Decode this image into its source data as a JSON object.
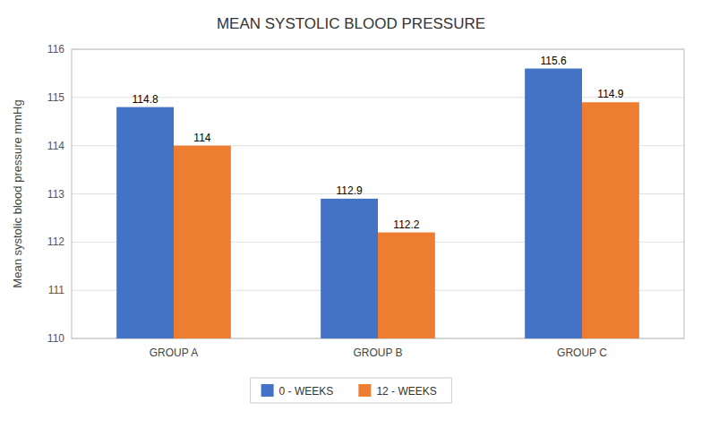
{
  "chart_data": {
    "type": "bar",
    "title": "MEAN SYSTOLIC BLOOD PRESSURE",
    "categories": [
      "GROUP A",
      "GROUP B",
      "GROUP C"
    ],
    "series": [
      {
        "name": "0 - WEEKS",
        "color": "#4472C4",
        "values": [
          114.8,
          112.9,
          115.6
        ]
      },
      {
        "name": "12 - WEEKS",
        "color": "#ED7D31",
        "values": [
          114.0,
          112.2,
          114.9
        ]
      }
    ],
    "ylabel": "Mean systolic blood pressure mmHg",
    "ylim": [
      110,
      116
    ],
    "yticks": [
      110,
      111,
      112,
      113,
      114,
      115,
      116
    ],
    "grid": true,
    "legend": "bottom",
    "data_labels": true
  }
}
